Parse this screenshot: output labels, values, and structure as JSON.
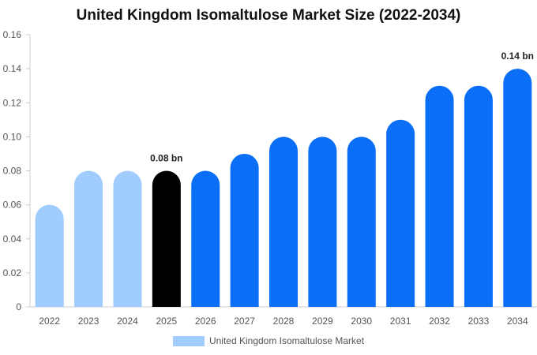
{
  "chart_data": {
    "type": "bar",
    "title": "United Kingdom Isomaltulose Market Size (2022-2034)",
    "categories": [
      "2022",
      "2023",
      "2024",
      "2025",
      "2026",
      "2027",
      "2028",
      "2029",
      "2030",
      "2031",
      "2032",
      "2033",
      "2034"
    ],
    "series": [
      {
        "name": "United Kingdom Isomaltulose Market",
        "values": [
          0.06,
          0.08,
          0.08,
          0.08,
          0.08,
          0.09,
          0.1,
          0.1,
          0.1,
          0.11,
          0.13,
          0.13,
          0.14
        ]
      }
    ],
    "ylim": [
      0,
      0.16
    ],
    "yticks": [
      "0",
      "0.02",
      "0.04",
      "0.06",
      "0.08",
      "0.10",
      "0.12",
      "0.14",
      "0.16"
    ],
    "annotations": [
      {
        "category": "2025",
        "text": "0.08 bn"
      },
      {
        "category": "2034",
        "text": "0.14 bn"
      }
    ],
    "bar_colors": [
      "#a0cdfd",
      "#a0cdfd",
      "#a0cdfd",
      "#000000",
      "#0a6ef7",
      "#0a6ef7",
      "#0a6ef7",
      "#0a6ef7",
      "#0a6ef7",
      "#0a6ef7",
      "#0a6ef7",
      "#0a6ef7",
      "#0a6ef7"
    ],
    "legend_color": "#a0cdfd",
    "legend_position": "bottom",
    "grid": false
  }
}
